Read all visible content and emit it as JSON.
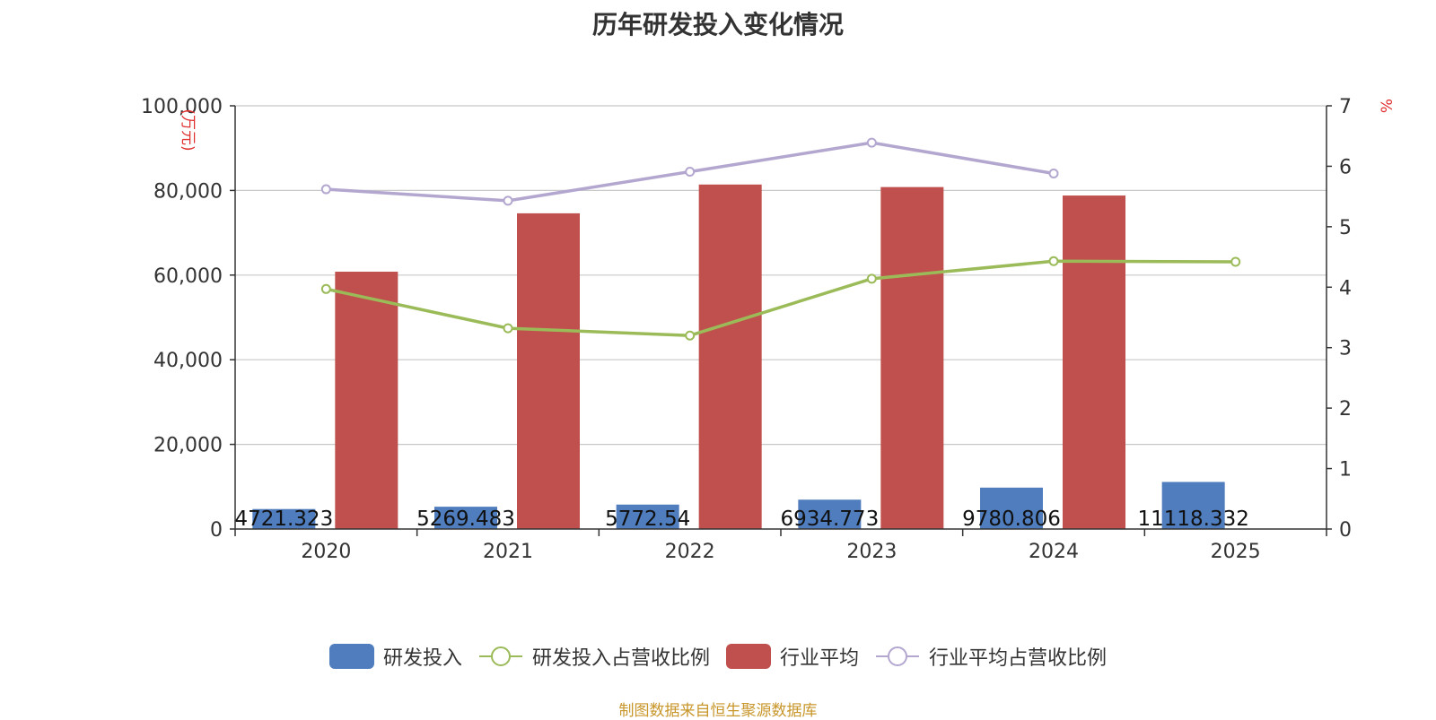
{
  "title": "历年研发投入变化情况",
  "source": "制图数据来自恒生聚源数据库",
  "colors": {
    "rd_bar": "#4f7dbd",
    "industry_bar": "#c0504d",
    "rd_ratio_line": "#9bbb59",
    "industry_ratio_line": "#b3a7d0",
    "grid": "#c8c8c8",
    "axis": "#333333",
    "unit_label": "#e03030"
  },
  "chart_data": {
    "type": "bar",
    "title": "历年研发投入变化情况",
    "categories": [
      "2020",
      "2021",
      "2022",
      "2023",
      "2024",
      "2025"
    ],
    "y_left": {
      "label": "(万元)",
      "ylim": [
        0,
        100000
      ],
      "ticks": [
        "0",
        "20,000",
        "40,000",
        "60,000",
        "80,000",
        "100,000"
      ]
    },
    "y_right": {
      "label": "%",
      "ylim": [
        0,
        7
      ],
      "ticks": [
        "0",
        "1",
        "2",
        "3",
        "4",
        "5",
        "6",
        "7"
      ]
    },
    "grid": true,
    "legend_position": "bottom",
    "series": [
      {
        "name": "研发投入",
        "type": "bar",
        "axis": "left",
        "values": [
          4721.323,
          5269.483,
          5772.54,
          6934.773,
          9780.806,
          11118.332
        ],
        "labels": [
          "4721.323",
          "5269.483",
          "5772.54",
          "6934.773",
          "9780.806",
          "11118.332"
        ]
      },
      {
        "name": "研发投入占营收比例",
        "type": "line",
        "axis": "right",
        "values": [
          3.97,
          3.32,
          3.2,
          4.14,
          4.43,
          4.42
        ]
      },
      {
        "name": "行业平均",
        "type": "bar",
        "axis": "left",
        "values": [
          60800,
          74600,
          81400,
          80800,
          78800,
          null
        ]
      },
      {
        "name": "行业平均占营收比例",
        "type": "line",
        "axis": "right",
        "values": [
          5.62,
          5.43,
          5.91,
          6.39,
          5.88,
          null
        ]
      }
    ]
  }
}
